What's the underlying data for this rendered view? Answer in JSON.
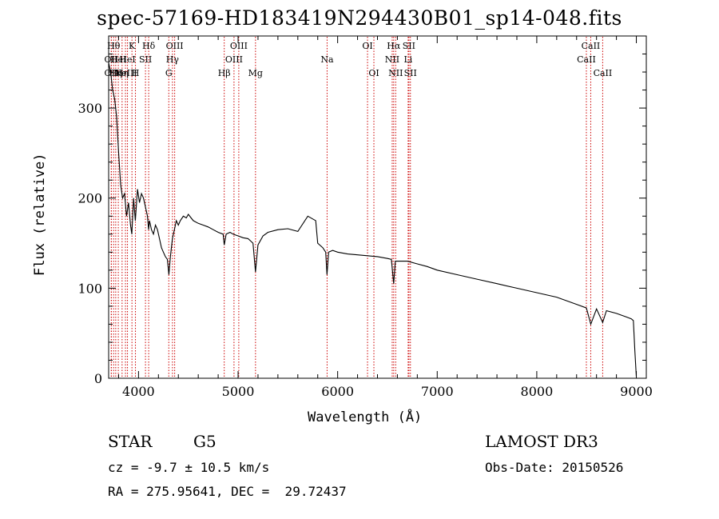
{
  "chart_data": {
    "type": "line",
    "title": "spec-57169-HD183419N294430B01_sp14-048.fits",
    "xlabel": "Wavelength (Å)",
    "ylabel": "Flux (relative)",
    "xlim": [
      3700,
      9100
    ],
    "ylim": [
      0,
      380
    ],
    "xticks": [
      4000,
      5000,
      6000,
      7000,
      8000,
      9000
    ],
    "yticks": [
      0,
      100,
      200,
      300
    ],
    "series": [
      {
        "name": "flux",
        "x": [
          3700,
          3720,
          3740,
          3760,
          3780,
          3800,
          3820,
          3840,
          3860,
          3880,
          3900,
          3920,
          3933,
          3950,
          3968,
          3990,
          4010,
          4030,
          4050,
          4070,
          4090,
          4101,
          4110,
          4130,
          4150,
          4170,
          4190,
          4210,
          4230,
          4250,
          4270,
          4290,
          4305,
          4320,
          4340,
          4360,
          4380,
          4400,
          4420,
          4450,
          4480,
          4500,
          4550,
          4600,
          4650,
          4700,
          4750,
          4800,
          4850,
          4861,
          4880,
          4920,
          4950,
          5000,
          5050,
          5100,
          5150,
          5175,
          5200,
          5250,
          5300,
          5400,
          5500,
          5600,
          5700,
          5780,
          5800,
          5850,
          5880,
          5893,
          5910,
          5950,
          6000,
          6100,
          6200,
          6300,
          6400,
          6500,
          6540,
          6563,
          6580,
          6650,
          6700,
          6800,
          6900,
          7000,
          7200,
          7400,
          7600,
          7800,
          8000,
          8200,
          8400,
          8498,
          8542,
          8600,
          8662,
          8700,
          8800,
          8900,
          8950,
          8970,
          8985,
          9000
        ],
        "y": [
          350,
          340,
          320,
          310,
          290,
          250,
          215,
          200,
          205,
          180,
          195,
          170,
          160,
          200,
          175,
          210,
          195,
          205,
          200,
          190,
          180,
          165,
          175,
          165,
          160,
          170,
          165,
          155,
          145,
          140,
          135,
          132,
          115,
          135,
          155,
          165,
          175,
          170,
          175,
          180,
          178,
          182,
          175,
          172,
          170,
          168,
          165,
          162,
          160,
          148,
          160,
          162,
          160,
          158,
          156,
          155,
          150,
          118,
          148,
          158,
          162,
          165,
          166,
          163,
          180,
          175,
          150,
          145,
          140,
          115,
          140,
          142,
          140,
          138,
          137,
          136,
          135,
          133,
          132,
          105,
          130,
          130,
          130,
          127,
          124,
          120,
          115,
          110,
          105,
          100,
          95,
          90,
          82,
          78,
          60,
          77,
          62,
          75,
          72,
          68,
          66,
          64,
          30,
          2
        ]
      }
    ],
    "line_markers": [
      {
        "wavelength": 3727,
        "label": "OII",
        "row": 2
      },
      {
        "wavelength": 3727,
        "label": "OII",
        "row": 3
      },
      {
        "wavelength": 3750,
        "label": "Hθ",
        "row": 1
      },
      {
        "wavelength": 3771,
        "label": "Hη",
        "row": 3
      },
      {
        "wavelength": 3797,
        "label": "HeI",
        "row": 2
      },
      {
        "wavelength": 3835,
        "label": "Hη",
        "row": 3
      },
      {
        "wavelength": 3869,
        "label": "NeIII",
        "row": 3
      },
      {
        "wavelength": 3889,
        "label": "HeI",
        "row": 2
      },
      {
        "wavelength": 3934,
        "label": "K",
        "row": 1
      },
      {
        "wavelength": 3969,
        "label": "H",
        "row": 3
      },
      {
        "wavelength": 4070,
        "label": "SII",
        "row": 2
      },
      {
        "wavelength": 4102,
        "label": "Hδ",
        "row": 1
      },
      {
        "wavelength": 4304,
        "label": "G",
        "row": 3
      },
      {
        "wavelength": 4341,
        "label": "Hγ",
        "row": 2
      },
      {
        "wavelength": 4363,
        "label": "OIII",
        "row": 1
      },
      {
        "wavelength": 4861,
        "label": "Hβ",
        "row": 3
      },
      {
        "wavelength": 4959,
        "label": "OIII",
        "row": 2
      },
      {
        "wavelength": 5007,
        "label": "OIII",
        "row": 1
      },
      {
        "wavelength": 5175,
        "label": "Mg",
        "row": 3
      },
      {
        "wavelength": 5894,
        "label": "Na",
        "row": 2
      },
      {
        "wavelength": 6300,
        "label": "OI",
        "row": 1
      },
      {
        "wavelength": 6364,
        "label": "OI",
        "row": 3
      },
      {
        "wavelength": 6548,
        "label": "NII",
        "row": 2
      },
      {
        "wavelength": 6563,
        "label": "Hα",
        "row": 1
      },
      {
        "wavelength": 6583,
        "label": "NII",
        "row": 3
      },
      {
        "wavelength": 6708,
        "label": "Li",
        "row": 2
      },
      {
        "wavelength": 6716,
        "label": "SII",
        "row": 1
      },
      {
        "wavelength": 6731,
        "label": "SII",
        "row": 3
      },
      {
        "wavelength": 8498,
        "label": "CaII",
        "row": 2
      },
      {
        "wavelength": 8542,
        "label": "CaII",
        "row": 1
      },
      {
        "wavelength": 8662,
        "label": "CaII",
        "row": 3
      }
    ]
  },
  "info": {
    "object_class": "STAR",
    "subclass": "G5",
    "survey": "LAMOST DR3",
    "redshift": "cz = -9.7 ± 10.5 km/s",
    "obs_date": "Obs-Date: 20150526",
    "coords": "RA = 275.95641, DEC =  29.72437"
  },
  "colors": {
    "spectrum": "#000000",
    "marker_line": "#cc0000",
    "axes": "#000000",
    "background": "#ffffff"
  }
}
